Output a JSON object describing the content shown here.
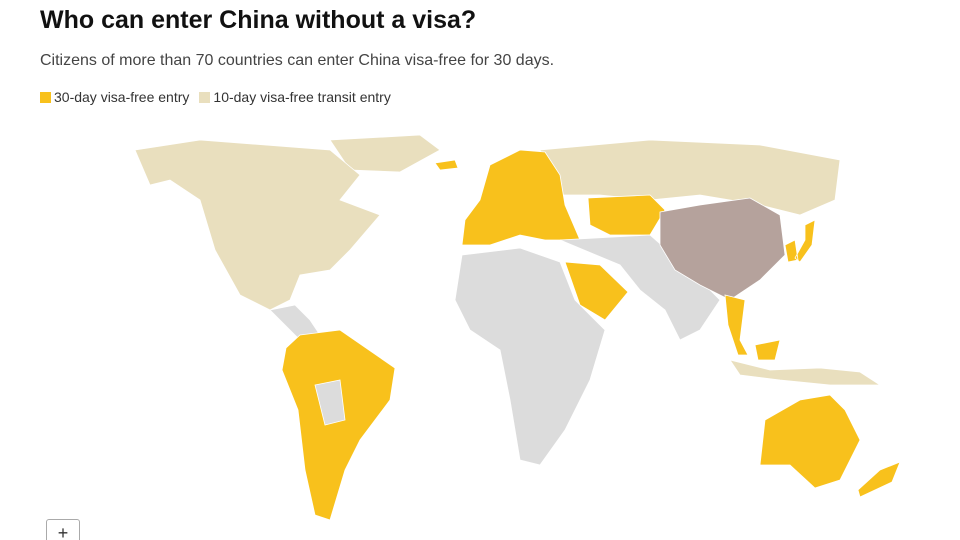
{
  "title": "Who can enter China without a visa?",
  "subtitle": "Citizens of more than 70 countries can enter China visa-free for 30 days.",
  "legend": [
    {
      "label": "30-day visa-free entry",
      "color": "#f8c11c"
    },
    {
      "label": "10-day visa-free transit entry",
      "color": "#e9dfbe"
    }
  ],
  "zoom_button": "+"
}
